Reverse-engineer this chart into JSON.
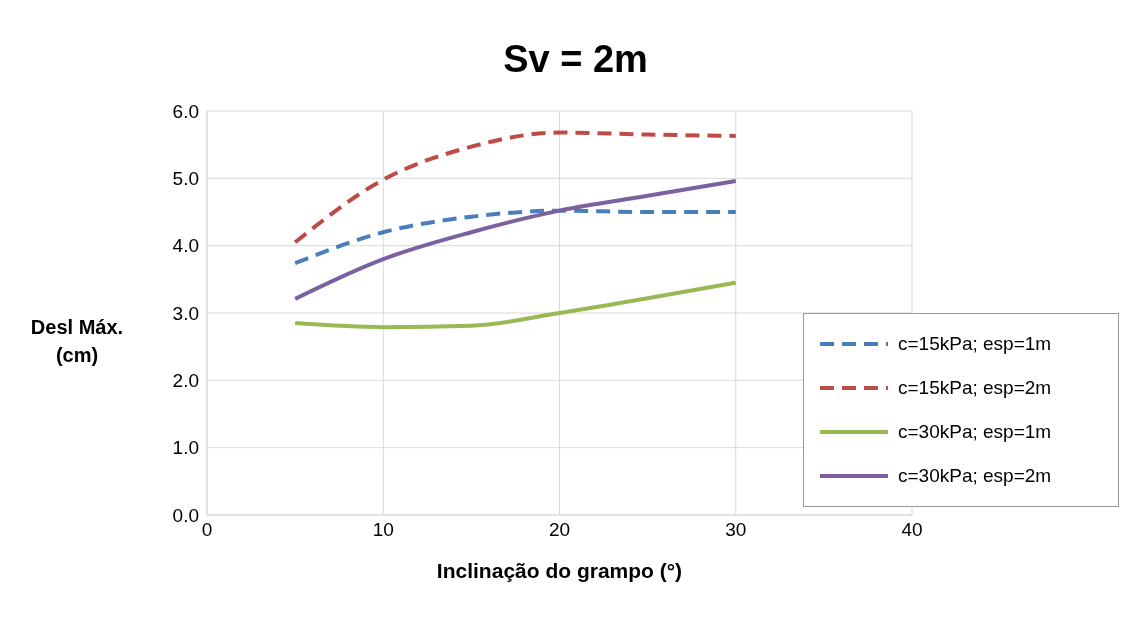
{
  "chart_data": {
    "type": "line",
    "title": "Sv = 2m",
    "xlabel": "Inclinação do grampo (°)",
    "ylabel": "Desl  Máx. (cm)",
    "x": [
      5,
      10,
      15,
      20,
      25,
      30
    ],
    "series": [
      {
        "name": "c=15kPa; esp=1m",
        "color": "#4a7ebb",
        "line_style": "dashed",
        "values": [
          3.74,
          4.2,
          4.43,
          4.52,
          4.5,
          4.5
        ]
      },
      {
        "name": "c=15kPa; esp=2m",
        "color": "#be4b48",
        "line_style": "dashed",
        "values": [
          4.05,
          4.98,
          5.47,
          5.68,
          5.65,
          5.63
        ]
      },
      {
        "name": "c=30kPa; esp=1m",
        "color": "#98b954",
        "line_style": "solid",
        "values": [
          2.85,
          2.79,
          2.81,
          3.0,
          3.22,
          3.45
        ]
      },
      {
        "name": "c=30kPa; esp=2m",
        "color": "#7d60a0",
        "line_style": "solid",
        "values": [
          3.21,
          3.8,
          4.2,
          4.52,
          4.74,
          4.96
        ]
      }
    ],
    "xlim": [
      0,
      40
    ],
    "xticks": [
      0,
      10,
      20,
      30,
      40
    ],
    "ylim": [
      0,
      6
    ],
    "yticks": [
      {
        "value": 0,
        "label": "0.0"
      },
      {
        "value": 1,
        "label": "1.0"
      },
      {
        "value": 2,
        "label": "2.0"
      },
      {
        "value": 3,
        "label": "3.0"
      },
      {
        "value": 4,
        "label": "4.0"
      },
      {
        "value": 5,
        "label": "5.0"
      },
      {
        "value": 6,
        "label": "6.0"
      }
    ],
    "grid": true,
    "legend": "right",
    "marker": "none"
  }
}
